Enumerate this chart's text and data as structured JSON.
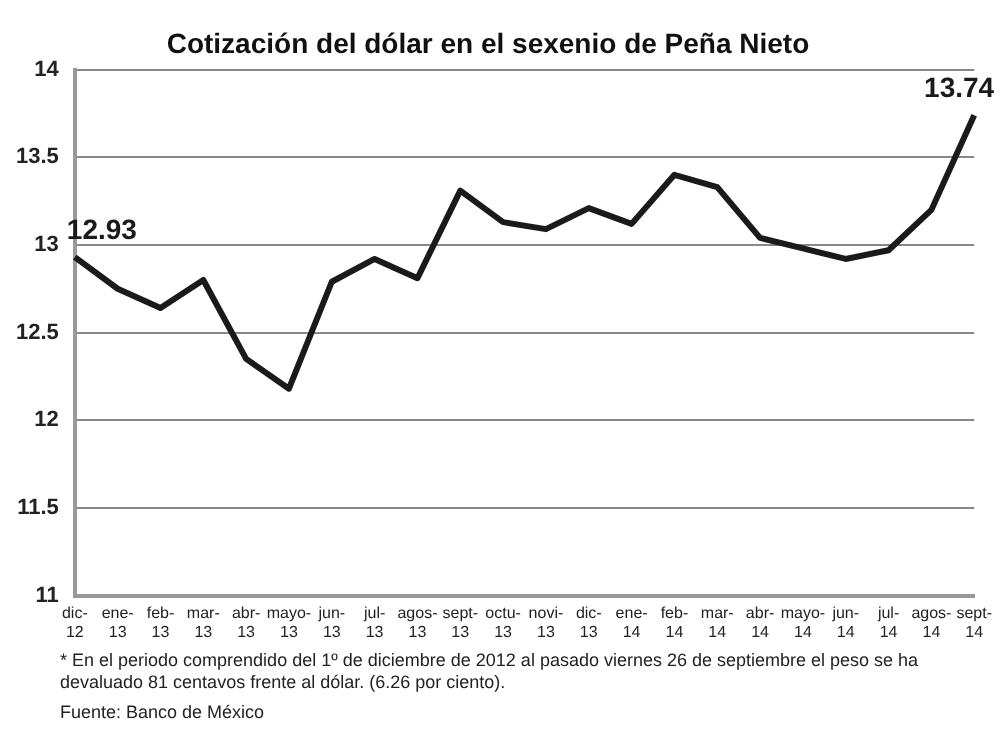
{
  "chart_data": {
    "type": "line",
    "title": "Cotización del dólar en el sexenio de Peña Nieto",
    "categories": [
      "dic-12",
      "ene-13",
      "feb-13",
      "mar-13",
      "abr-13",
      "mayo-13",
      "jun-13",
      "jul-13",
      "agos-13",
      "sept-13",
      "octu-13",
      "novi-13",
      "dic-13",
      "ene-14",
      "feb-14",
      "mar-14",
      "abr-14",
      "mayo-14",
      "jun-14",
      "jul-14",
      "agos-14",
      "sept-14"
    ],
    "series": [
      {
        "color": "#1a1a1a",
        "values": [
          12.93,
          12.75,
          12.64,
          12.8,
          12.35,
          12.18,
          12.79,
          12.92,
          12.81,
          13.31,
          13.13,
          13.09,
          13.21,
          13.12,
          13.4,
          13.33,
          13.04,
          12.98,
          12.92,
          12.97,
          13.2,
          13.74
        ],
        "value_labels": [
          "12.93",
          null,
          null,
          null,
          null,
          null,
          null,
          null,
          null,
          null,
          null,
          null,
          null,
          null,
          null,
          null,
          null,
          null,
          null,
          null,
          null,
          "13.74"
        ]
      }
    ],
    "ylim": [
      11,
      14
    ],
    "yticks": [
      11,
      11.5,
      12,
      12.5,
      13,
      13.5,
      14
    ],
    "grid": "y",
    "legend": false,
    "marker": "none",
    "line_style": "solid",
    "annotations": [
      "* En el periodo comprendido del 1º de diciembre de 2012 al pasado viernes 26 de septiembre el peso se ha devaluado 81 centavos frente al dólar. (6.26 por ciento).",
      "Fuente: Banco de México"
    ]
  }
}
